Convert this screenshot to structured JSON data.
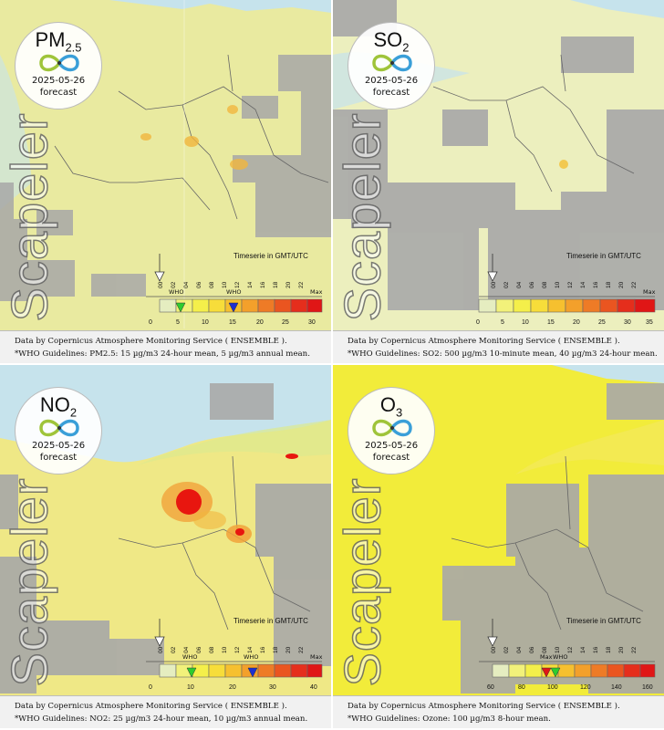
{
  "panels": [
    {
      "id": "pm25",
      "pollutant": "PM",
      "pollutant_sub": "2.5",
      "date": "2025-05-26",
      "forecast": "forecast",
      "watermark": "Scapeler",
      "timeserie": "Timeserie in GMT/UTC",
      "hours": [
        "00",
        "02",
        "04",
        "06",
        "08",
        "10",
        "12",
        "14",
        "16",
        "18",
        "20",
        "22"
      ],
      "scale": [
        "0",
        "5",
        "10",
        "15",
        "20",
        "25",
        "30"
      ],
      "max_label": "Max",
      "who_labels": [
        "WHO",
        "WHO"
      ],
      "line1": "Data by Copernicus Atmosphere Monitoring Service ( ENSEMBLE ).",
      "line2": "*WHO Guidelines: PM2.5: 15 µg/m3 24-hour mean, 5 µg/m3 annual mean.",
      "colors": {
        "land": "#e9eaa0",
        "sea": "#c6e3ec",
        "cloud": "#a8a8a8",
        "hot": "#f1b63e"
      }
    },
    {
      "id": "so2",
      "pollutant": "SO",
      "pollutant_sub": "2",
      "date": "2025-05-26",
      "forecast": "forecast",
      "watermark": "Scapeler",
      "timeserie": "Timeserie in GMT/UTC",
      "hours": [
        "00",
        "02",
        "04",
        "06",
        "08",
        "10",
        "12",
        "14",
        "16",
        "18",
        "20",
        "22"
      ],
      "scale": [
        "0",
        "5",
        "10",
        "15",
        "20",
        "25",
        "30",
        "35"
      ],
      "max_label": "Max",
      "who_labels": [],
      "line1": "Data by Copernicus Atmosphere Monitoring Service ( ENSEMBLE ).",
      "line2": "*WHO Guidelines: SO2: 500 µg/m3 10-minute mean, 40 µg/m3 24-hour mean.",
      "colors": {
        "land": "#ecefbe",
        "sea": "#c6e3ec",
        "cloud": "#a8a8a8",
        "hot": "#f2c950"
      }
    },
    {
      "id": "no2",
      "pollutant": "NO",
      "pollutant_sub": "2",
      "date": "2025-05-26",
      "forecast": "forecast",
      "watermark": "Scapeler",
      "timeserie": "Timeserie in GMT/UTC",
      "hours": [
        "00",
        "02",
        "04",
        "06",
        "08",
        "10",
        "12",
        "14",
        "16",
        "18",
        "20",
        "22"
      ],
      "scale": [
        "0",
        "10",
        "20",
        "30",
        "40"
      ],
      "max_label": "Max",
      "who_labels": [
        "WHO",
        "WHO"
      ],
      "line1": "Data by Copernicus Atmosphere Monitoring Service ( ENSEMBLE ).",
      "line2": "*WHO Guidelines: NO2: 25 µg/m3 24-hour mean, 10 µg/m3 annual mean.",
      "colors": {
        "land": "#efe886",
        "sea": "#c6e3ec",
        "cloud": "#a8a8a8",
        "hot": "#e8160f"
      }
    },
    {
      "id": "o3",
      "pollutant": "O",
      "pollutant_sub": "3",
      "date": "2025-05-26",
      "forecast": "forecast",
      "watermark": "Scapeler",
      "timeserie": "Timeserie in GMT/UTC",
      "hours": [
        "00",
        "02",
        "04",
        "06",
        "08",
        "10",
        "12",
        "14",
        "16",
        "18",
        "20",
        "22"
      ],
      "scale": [
        "60",
        "80",
        "100",
        "120",
        "140",
        "160"
      ],
      "max_label": "Max",
      "who_labels": [
        "WHO"
      ],
      "line1": "Data by Copernicus Atmosphere Monitoring Service ( ENSEMBLE ).",
      "line2": "*WHO Guidelines: Ozone: 100 µg/m3 8-hour mean.",
      "colors": {
        "land": "#f2ec3a",
        "sea": "#c6e3ec",
        "cloud": "#a8a8a8",
        "hot": "#f6df1a"
      }
    }
  ]
}
